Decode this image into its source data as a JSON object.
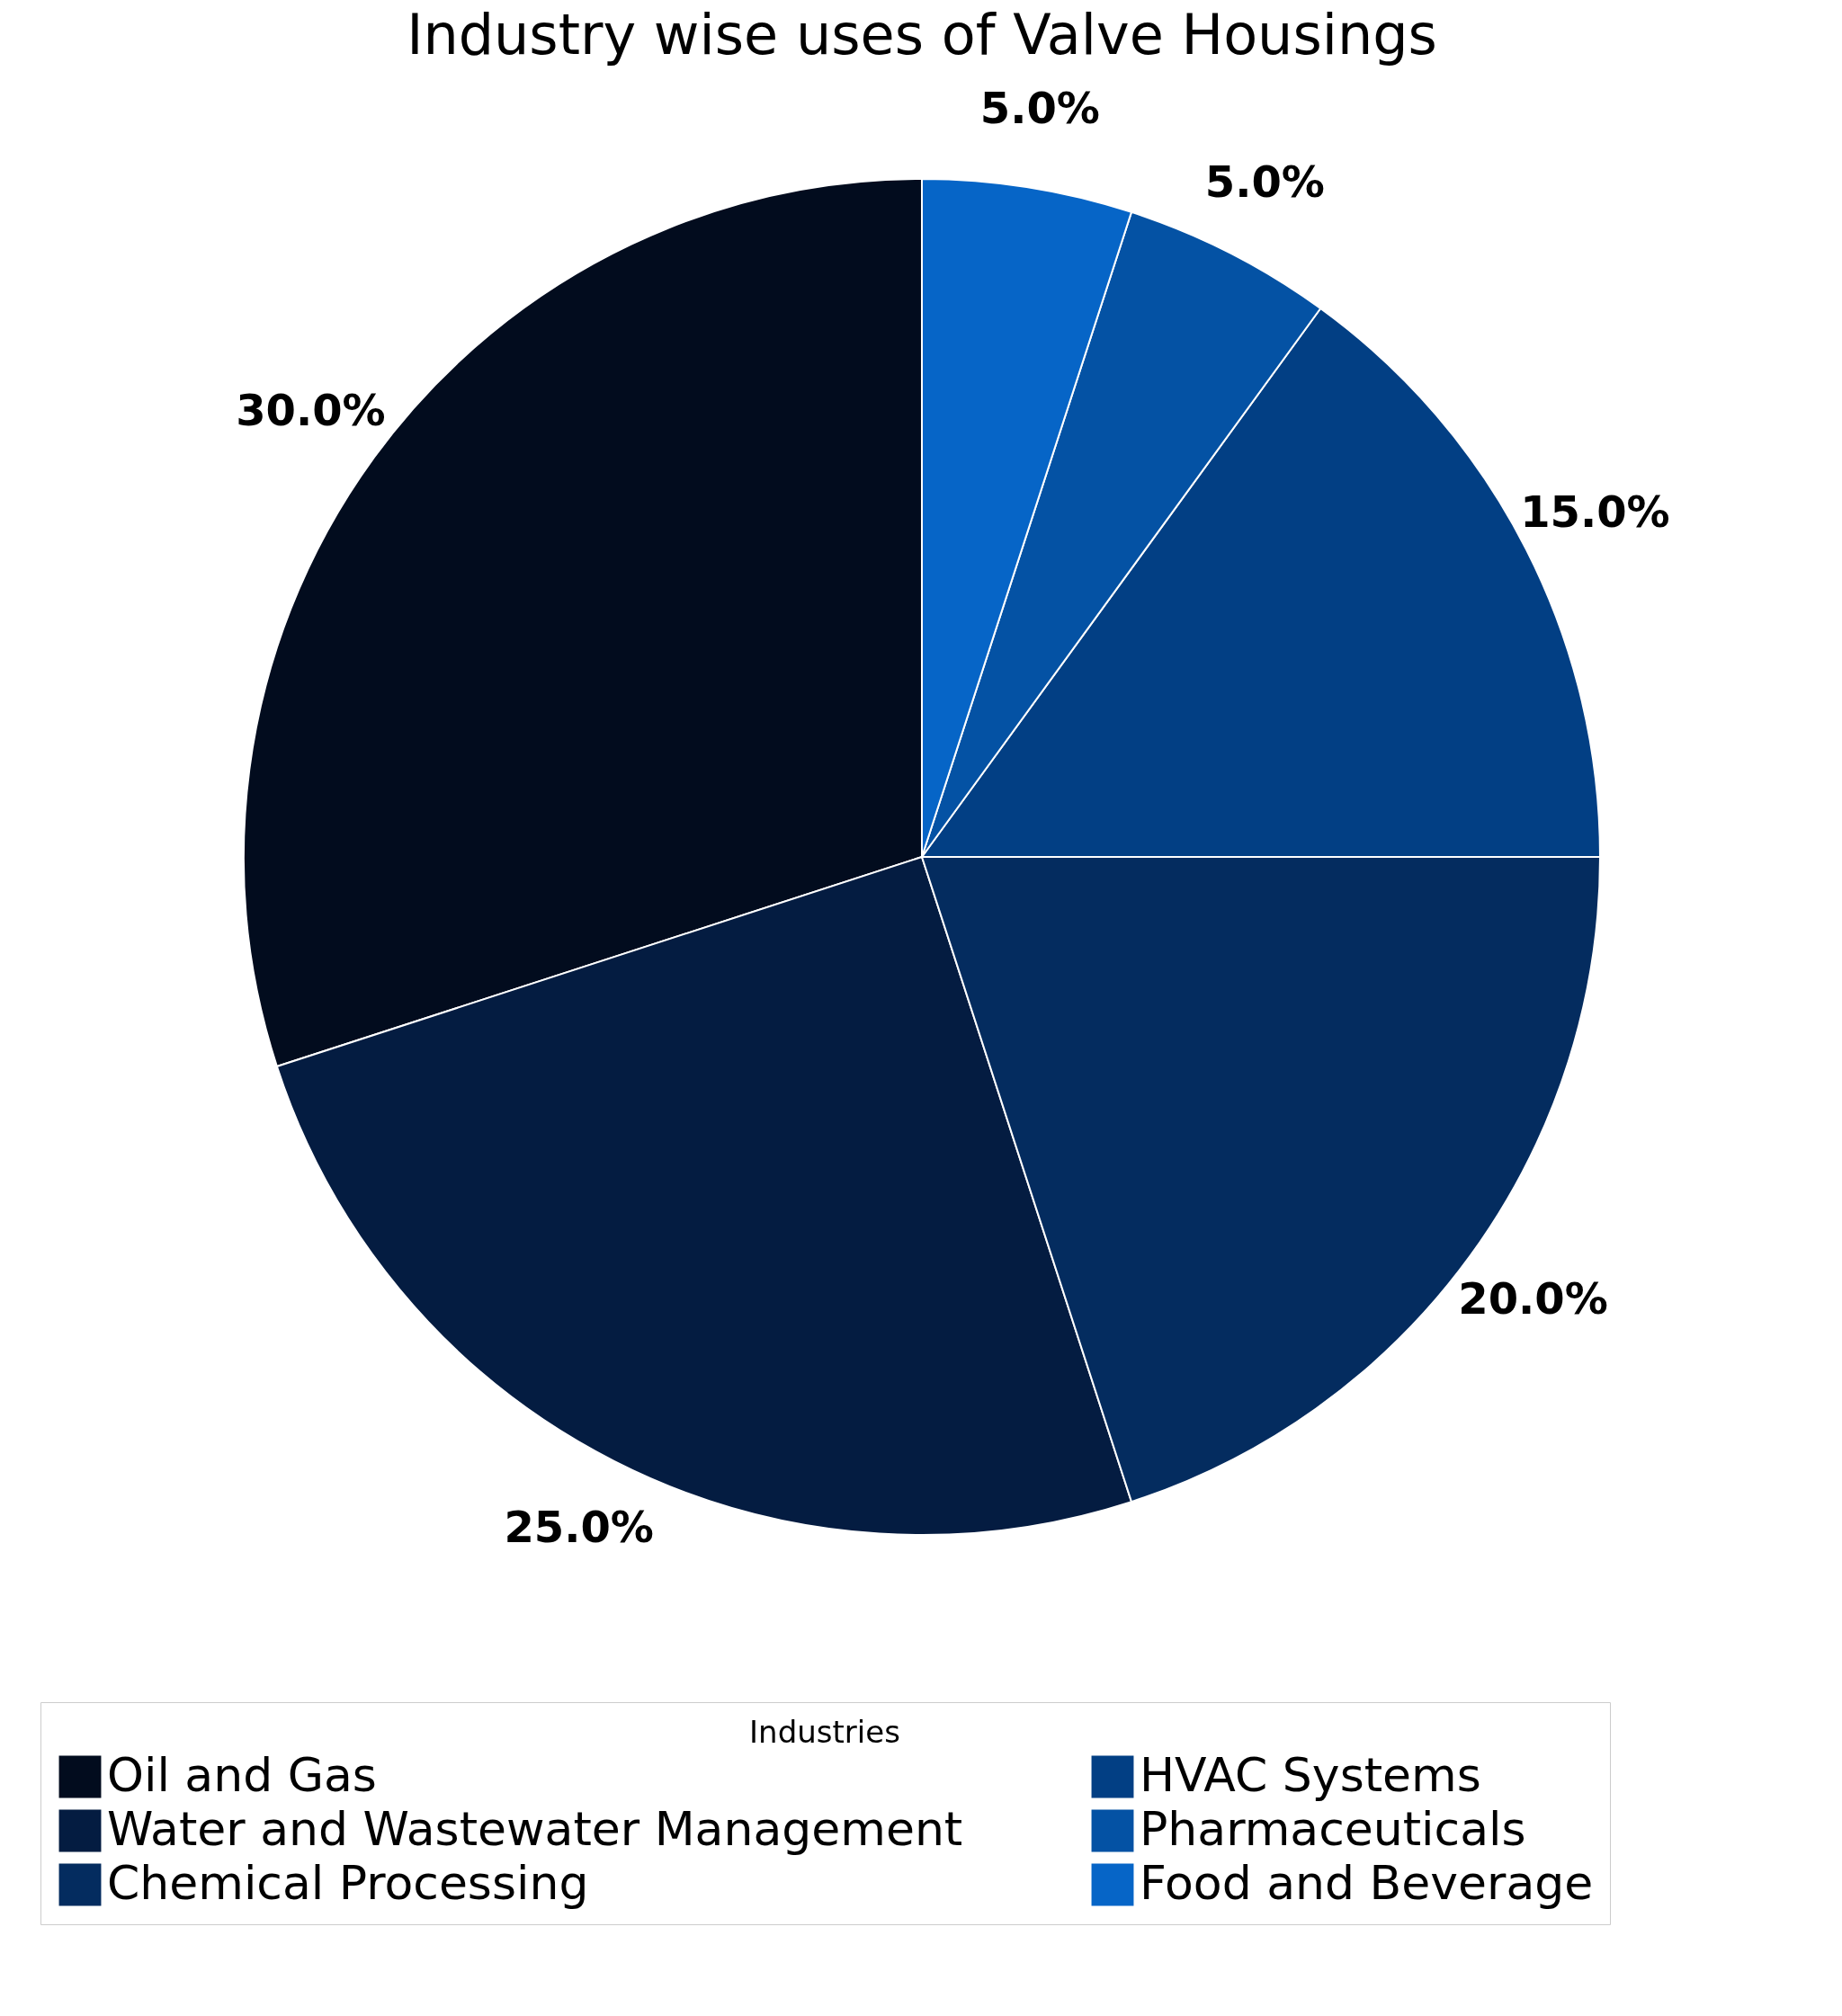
{
  "chart_data": {
    "type": "pie",
    "title": "Industry wise uses of Valve Housings",
    "legend_title": "Industries",
    "legend": "bottom",
    "categories": [
      "Oil and Gas",
      "Water and Wastewater Management",
      "Chemical Processing",
      "HVAC Systems",
      "Pharmaceuticals",
      "Food and Beverage"
    ],
    "values": [
      30,
      25,
      20,
      15,
      5,
      5
    ],
    "colors": [
      "#020c1e",
      "#041c41",
      "#042c5f",
      "#023f84",
      "#0452a4",
      "#0665c7"
    ],
    "value_labels": [
      "30.0%",
      "25.0%",
      "20.0%",
      "15.0%",
      "5.0%",
      "5.0%"
    ]
  }
}
